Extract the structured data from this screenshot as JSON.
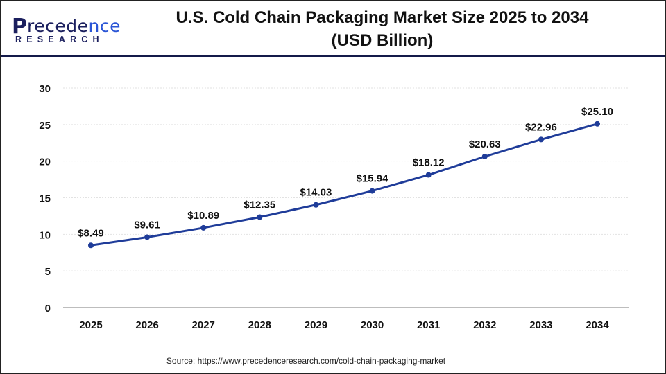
{
  "header": {
    "logo_text": "Precedence",
    "logo_sub": "RESEARCH",
    "title_line1": "U.S. Cold Chain Packaging Market Size 2025 to 2034",
    "title_line2": "(USD Billion)"
  },
  "source": "Source: https://www.precedenceresearch.com/cold-chain-packaging-market",
  "chart_data": {
    "type": "line",
    "title": "U.S. Cold Chain Packaging Market Size 2025 to 2034 (USD Billion)",
    "categories": [
      "2025",
      "2026",
      "2027",
      "2028",
      "2029",
      "2030",
      "2031",
      "2032",
      "2033",
      "2034"
    ],
    "values": [
      8.49,
      9.61,
      10.89,
      12.35,
      14.03,
      15.94,
      18.12,
      20.63,
      22.96,
      25.1
    ],
    "data_labels": [
      "$8.49",
      "$9.61",
      "$10.89",
      "$12.35",
      "$14.03",
      "$15.94",
      "$18.12",
      "$20.63",
      "$22.96",
      "$25.10"
    ],
    "yticks": [
      0,
      5,
      10,
      15,
      20,
      25,
      30
    ],
    "ylim": [
      0,
      30
    ],
    "grid": true,
    "line_color": "#1f3c99",
    "xlabel": "",
    "ylabel": ""
  }
}
